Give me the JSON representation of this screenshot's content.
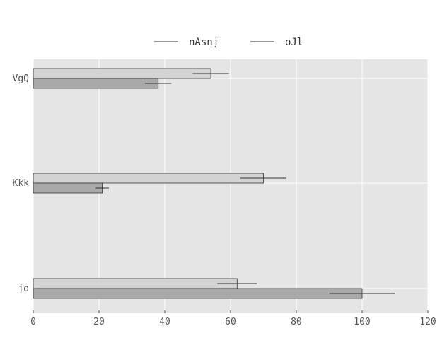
{
  "chart_data": {
    "type": "bar",
    "orientation": "horizontal",
    "categories": [
      "VgQ",
      "Kkk",
      "jo"
    ],
    "series": [
      {
        "name": "nAsnj",
        "values": [
          54,
          70,
          62
        ],
        "errors": [
          5.5,
          7,
          6
        ],
        "color": "#d3d3d3"
      },
      {
        "name": "oJl",
        "values": [
          38,
          21,
          100
        ],
        "errors": [
          4,
          2,
          10
        ],
        "color": "#a9a9a9"
      }
    ],
    "xlim": [
      0,
      120
    ],
    "xticks": [
      0,
      20,
      40,
      60,
      80,
      100,
      120
    ],
    "grid": true,
    "legend_position": "top",
    "plot_background": "#e5e5e5",
    "grid_color": "#ffffff",
    "title": "",
    "xlabel": "",
    "ylabel": ""
  }
}
